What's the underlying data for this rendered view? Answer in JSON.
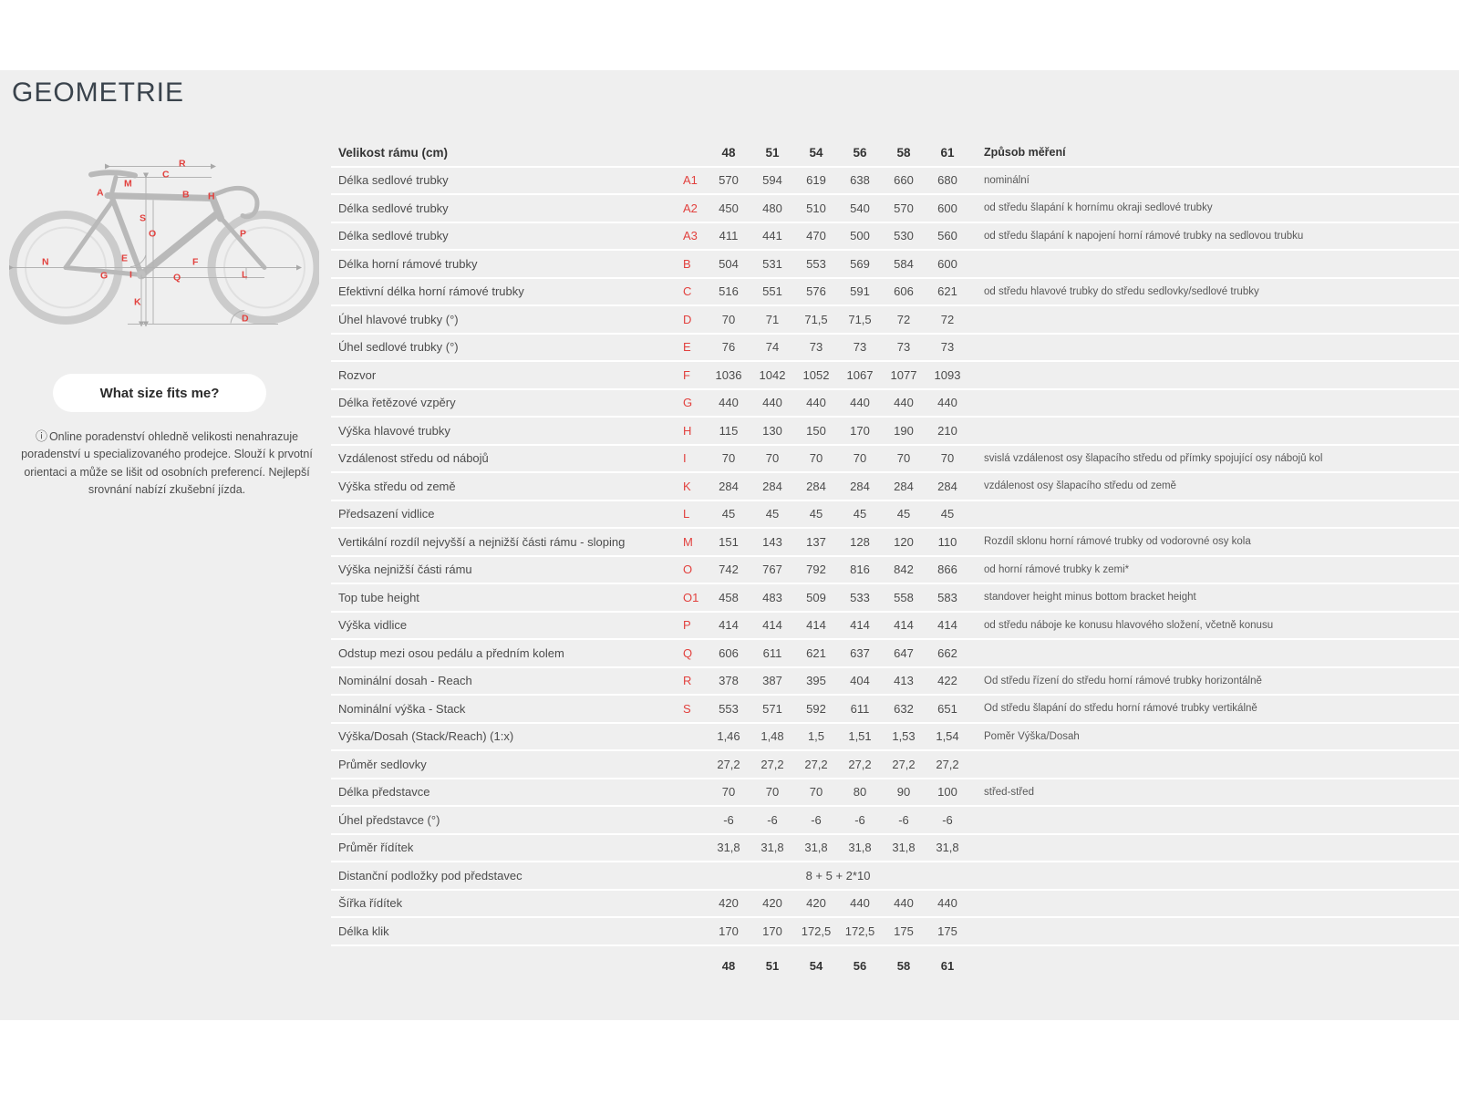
{
  "page": {
    "title": "GEOMETRIE"
  },
  "sidebar": {
    "button_label": "What size fits me?",
    "info_icon": "ⓘ",
    "note": "Online poradenství ohledně velikosti nenahrazuje poradenství u specializovaného prodejce. Slouží k prvotní orientaci a může se lišit od osobních preferencí. Nejlepší srovnání nabízí zkušební jízda.",
    "diagram_labels": [
      "R",
      "C",
      "M",
      "A",
      "B",
      "H",
      "S",
      "O",
      "P",
      "E",
      "N",
      "G",
      "F",
      "I",
      "Q",
      "L",
      "K",
      "D"
    ]
  },
  "colors": {
    "accent_red": "#e2413e",
    "title": "#3a434c",
    "content_bg": "#efefef"
  },
  "table": {
    "header": {
      "label": "Velikost rámu (cm)",
      "sizes": [
        "48",
        "51",
        "54",
        "56",
        "58",
        "61"
      ],
      "method": "Způsob měření"
    },
    "rows": [
      {
        "label": "Délka sedlové trubky",
        "letter": "A1",
        "values": [
          "570",
          "594",
          "619",
          "638",
          "660",
          "680"
        ],
        "desc": "nominální"
      },
      {
        "label": "Délka sedlové trubky",
        "letter": "A2",
        "values": [
          "450",
          "480",
          "510",
          "540",
          "570",
          "600"
        ],
        "desc": "od středu šlapání k hornímu okraji sedlové trubky"
      },
      {
        "label": "Délka sedlové trubky",
        "letter": "A3",
        "values": [
          "411",
          "441",
          "470",
          "500",
          "530",
          "560"
        ],
        "desc": "od středu šlapání k napojení horní rámové trubky na sedlovou trubku"
      },
      {
        "label": "Délka horní rámové trubky",
        "letter": "B",
        "values": [
          "504",
          "531",
          "553",
          "569",
          "584",
          "600"
        ],
        "desc": ""
      },
      {
        "label": "Efektivní délka horní rámové trubky",
        "letter": "C",
        "values": [
          "516",
          "551",
          "576",
          "591",
          "606",
          "621"
        ],
        "desc": "od středu hlavové trubky do středu sedlovky/sedlové trubky"
      },
      {
        "label": "Úhel hlavové trubky (°)",
        "letter": "D",
        "values": [
          "70",
          "71",
          "71,5",
          "71,5",
          "72",
          "72"
        ],
        "desc": ""
      },
      {
        "label": "Úhel sedlové trubky (°)",
        "letter": "E",
        "values": [
          "76",
          "74",
          "73",
          "73",
          "73",
          "73"
        ],
        "desc": ""
      },
      {
        "label": "Rozvor",
        "letter": "F",
        "values": [
          "1036",
          "1042",
          "1052",
          "1067",
          "1077",
          "1093"
        ],
        "desc": ""
      },
      {
        "label": "Délka řetězové vzpěry",
        "letter": "G",
        "values": [
          "440",
          "440",
          "440",
          "440",
          "440",
          "440"
        ],
        "desc": ""
      },
      {
        "label": "Výška hlavové trubky",
        "letter": "H",
        "values": [
          "115",
          "130",
          "150",
          "170",
          "190",
          "210"
        ],
        "desc": ""
      },
      {
        "label": "Vzdálenost středu od nábojů",
        "letter": "I",
        "values": [
          "70",
          "70",
          "70",
          "70",
          "70",
          "70"
        ],
        "desc": "svislá vzdálenost osy šlapacího středu od přímky spojující osy nábojů kol"
      },
      {
        "label": "Výška středu od země",
        "letter": "K",
        "values": [
          "284",
          "284",
          "284",
          "284",
          "284",
          "284"
        ],
        "desc": "vzdálenost osy šlapacího středu od země"
      },
      {
        "label": "Předsazení vidlice",
        "letter": "L",
        "values": [
          "45",
          "45",
          "45",
          "45",
          "45",
          "45"
        ],
        "desc": ""
      },
      {
        "label": "Vertikální rozdíl nejvyšší a nejnižší části rámu - sloping",
        "letter": "M",
        "values": [
          "151",
          "143",
          "137",
          "128",
          "120",
          "110"
        ],
        "desc": "Rozdíl sklonu horní rámové trubky od vodorovné osy kola"
      },
      {
        "label": "Výška nejnižší části rámu",
        "letter": "O",
        "values": [
          "742",
          "767",
          "792",
          "816",
          "842",
          "866"
        ],
        "desc": "od horní rámové trubky k zemi*"
      },
      {
        "label": "Top tube height",
        "letter": "O1",
        "values": [
          "458",
          "483",
          "509",
          "533",
          "558",
          "583"
        ],
        "desc": "standover height minus bottom bracket height"
      },
      {
        "label": "Výška vidlice",
        "letter": "P",
        "values": [
          "414",
          "414",
          "414",
          "414",
          "414",
          "414"
        ],
        "desc": "od středu náboje ke konusu hlavového složení, včetně konusu"
      },
      {
        "label": "Odstup mezi osou pedálu a předním kolem",
        "letter": "Q",
        "values": [
          "606",
          "611",
          "621",
          "637",
          "647",
          "662"
        ],
        "desc": ""
      },
      {
        "label": "Nominální dosah - Reach",
        "letter": "R",
        "values": [
          "378",
          "387",
          "395",
          "404",
          "413",
          "422"
        ],
        "desc": "Od středu řízení do středu horní rámové trubky horizontálně"
      },
      {
        "label": "Nominální výška - Stack",
        "letter": "S",
        "values": [
          "553",
          "571",
          "592",
          "611",
          "632",
          "651"
        ],
        "desc": "Od středu šlapání do středu horní rámové trubky vertikálně"
      },
      {
        "label": "Výška/Dosah (Stack/Reach) (1:x)",
        "letter": "",
        "values": [
          "1,46",
          "1,48",
          "1,5",
          "1,51",
          "1,53",
          "1,54"
        ],
        "desc": "Poměr Výška/Dosah"
      },
      {
        "label": "Průměr sedlovky",
        "letter": "",
        "values": [
          "27,2",
          "27,2",
          "27,2",
          "27,2",
          "27,2",
          "27,2"
        ],
        "desc": ""
      },
      {
        "label": "Délka představce",
        "letter": "",
        "values": [
          "70",
          "70",
          "70",
          "80",
          "90",
          "100"
        ],
        "desc": "střed-střed"
      },
      {
        "label": "Úhel představce (°)",
        "letter": "",
        "values": [
          "-6",
          "-6",
          "-6",
          "-6",
          "-6",
          "-6"
        ],
        "desc": ""
      },
      {
        "label": "Průměr řídítek",
        "letter": "",
        "values": [
          "31,8",
          "31,8",
          "31,8",
          "31,8",
          "31,8",
          "31,8"
        ],
        "desc": ""
      },
      {
        "label": "Distanční podložky pod představec",
        "letter": "",
        "span_value": "8 + 5 + 2*10",
        "desc": ""
      },
      {
        "label": "Šířka řídítek",
        "letter": "",
        "values": [
          "420",
          "420",
          "420",
          "440",
          "440",
          "440"
        ],
        "desc": ""
      },
      {
        "label": "Délka klik",
        "letter": "",
        "values": [
          "170",
          "170",
          "172,5",
          "172,5",
          "175",
          "175"
        ],
        "desc": ""
      }
    ],
    "footer_sizes": [
      "48",
      "51",
      "54",
      "56",
      "58",
      "61"
    ]
  }
}
